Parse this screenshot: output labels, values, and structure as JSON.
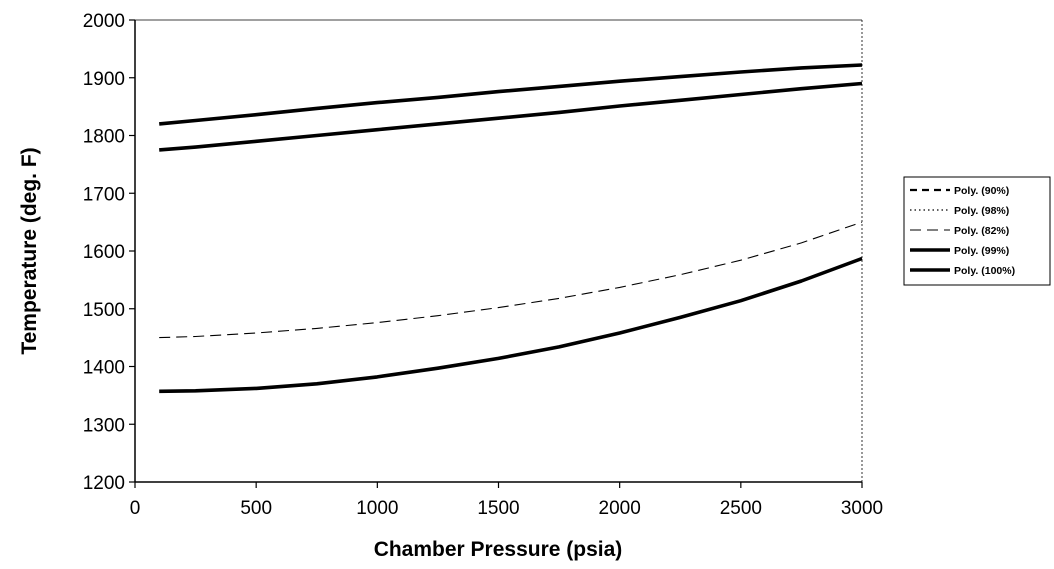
{
  "chart_data": {
    "type": "line",
    "xlabel": "Chamber Pressure (psia)",
    "ylabel": "Temperature (deg. F)",
    "xlim": [
      0,
      3000
    ],
    "ylim": [
      1200,
      2000
    ],
    "x_ticks": [
      "0",
      "500",
      "1000",
      "1500",
      "2000",
      "2500",
      "3000"
    ],
    "y_ticks": [
      "1200",
      "1300",
      "1400",
      "1500",
      "1600",
      "1700",
      "1800",
      "1900",
      "2000"
    ],
    "grid": false,
    "legend_position": "right",
    "x": [
      100,
      250,
      500,
      750,
      1000,
      1250,
      1500,
      1750,
      2000,
      2250,
      2500,
      2750,
      3000
    ],
    "series": [
      {
        "name": "Poly. (90%)",
        "style": "dashed-bold",
        "color": "#000000",
        "values": [
          null,
          null,
          null,
          null,
          null,
          null,
          null,
          null,
          null,
          null,
          null,
          null,
          null
        ]
      },
      {
        "name": "Poly. (98%)",
        "style": "dotted",
        "color": "#000000",
        "values": [
          null,
          null,
          null,
          null,
          null,
          null,
          null,
          null,
          null,
          null,
          null,
          null,
          null
        ]
      },
      {
        "name": "Poly. (82%)",
        "style": "dashed-thin",
        "color": "#000000",
        "values": [
          1450,
          1452,
          1458,
          1466,
          1476,
          1488,
          1502,
          1518,
          1537,
          1559,
          1584,
          1614,
          1650
        ]
      },
      {
        "name": "Poly. (99%)",
        "style": "solid-thick",
        "color": "#000000",
        "values": [
          1775,
          1780,
          1790,
          1800,
          1810,
          1820,
          1830,
          1840,
          1851,
          1861,
          1871,
          1881,
          1890
        ]
      },
      {
        "name": "Poly. (100%)",
        "style": "solid-thick",
        "color": "#000000",
        "values": [
          1820,
          1826,
          1836,
          1847,
          1857,
          1866,
          1876,
          1885,
          1894,
          1902,
          1910,
          1917,
          1922
        ]
      },
      {
        "name": "",
        "style": "solid-thick",
        "color": "#000000",
        "values": [
          1357,
          1358,
          1362,
          1370,
          1382,
          1397,
          1414,
          1434,
          1458,
          1485,
          1514,
          1548,
          1587
        ]
      }
    ]
  }
}
